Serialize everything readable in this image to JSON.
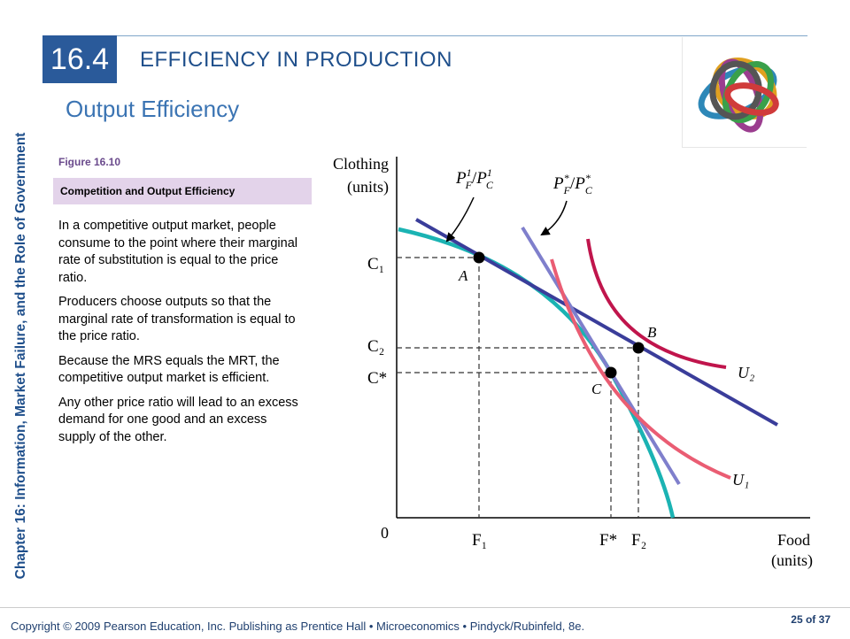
{
  "side_title": "Chapter 16:  Information, Market Failure, and the Role of Government",
  "section": {
    "number": "16.4",
    "title": "EFFICIENCY IN PRODUCTION"
  },
  "subtitle": "Output Efficiency",
  "figure": {
    "number": "Figure 16.10",
    "caption": "Competition and Output Efficiency"
  },
  "paragraphs": [
    "In a competitive output market, people consume to the point where their marginal rate of substitution is equal to the price ratio.",
    "Producers choose outputs so that the marginal rate of transformation is equal to the price ratio.",
    "Because the MRS equals the MRT, the competitive output market is efficient.",
    "Any other price ratio will lead to an excess demand for one good and an excess supply of the other."
  ],
  "chart": {
    "y_axis_label": [
      "Clothing",
      "(units)"
    ],
    "x_axis_label": [
      "Food",
      "(units)"
    ],
    "origin": "0",
    "y_ticks": [
      "C₁",
      "C₂",
      "C*"
    ],
    "x_ticks": [
      "F₁",
      "F*",
      "F₂"
    ],
    "price_ratio_1": "P¹F/P¹C",
    "price_ratio_star": "P*F/P*C",
    "points": [
      "A",
      "B",
      "C"
    ],
    "curves": [
      "U₂",
      "U₁"
    ]
  },
  "colors": {
    "accent": "#2a5a9a",
    "ppf": "#1bb3b3",
    "price_line_1": "#3a3d9a",
    "price_line_star": "#7f7fcc",
    "u1": "#ea5d73",
    "u2": "#c0154c"
  },
  "footer": {
    "copyright": "Copyright © 2009 Pearson Education, Inc. Publishing as Prentice Hall  •  Microeconomics  •  Pindyck/Rubinfeld, 8e.",
    "page": "25 of 37"
  }
}
